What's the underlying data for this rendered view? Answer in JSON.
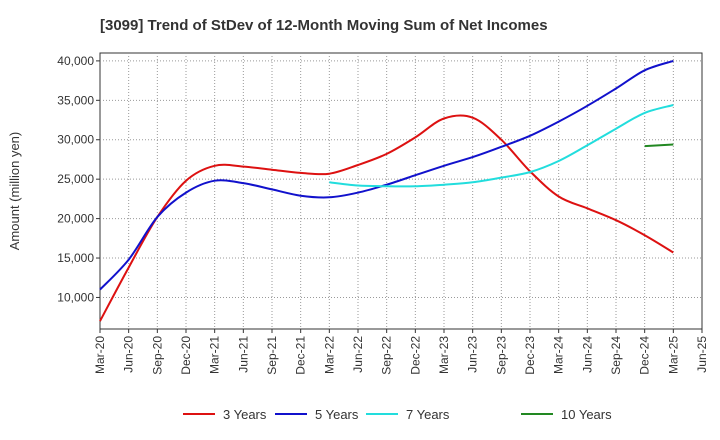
{
  "chart_data": {
    "type": "line",
    "title": "[3099]  Trend of StDev of 12-Month Moving Sum of Net Incomes",
    "xlabel": "",
    "ylabel": "Amount (million yen)",
    "ylim": [
      6000,
      41000
    ],
    "yticks": [
      10000,
      15000,
      20000,
      25000,
      30000,
      35000,
      40000
    ],
    "ytick_labels": [
      "10,000",
      "15,000",
      "20,000",
      "25,000",
      "30,000",
      "35,000",
      "40,000"
    ],
    "xtick_labels": [
      "Mar-20",
      "Jun-20",
      "Sep-20",
      "Dec-20",
      "Mar-21",
      "Jun-21",
      "Sep-21",
      "Dec-21",
      "Mar-22",
      "Jun-22",
      "Sep-22",
      "Dec-22",
      "Mar-23",
      "Jun-23",
      "Sep-23",
      "Dec-23",
      "Mar-24",
      "Jun-24",
      "Sep-24",
      "Dec-24",
      "Mar-25",
      "Jun-25"
    ],
    "grid": true,
    "legend_position": "bottom",
    "series": [
      {
        "name": "3 Years",
        "color": "#dd1111",
        "x": [
          "Mar-20",
          "Jun-20",
          "Sep-20",
          "Dec-20",
          "Mar-21",
          "Jun-21",
          "Sep-21",
          "Dec-21",
          "Mar-22",
          "Jun-22",
          "Sep-22",
          "Dec-22",
          "Mar-23",
          "Jun-23",
          "Sep-23",
          "Dec-23",
          "Mar-24",
          "Jun-24",
          "Sep-24",
          "Dec-24",
          "Mar-25"
        ],
        "values": [
          7000,
          13800,
          20200,
          24800,
          26700,
          26600,
          26200,
          25800,
          25700,
          26800,
          28200,
          30300,
          32700,
          32800,
          30000,
          26000,
          22800,
          21300,
          19800,
          17900,
          15700
        ]
      },
      {
        "name": "5 Years",
        "color": "#1111cc",
        "x": [
          "Mar-20",
          "Jun-20",
          "Sep-20",
          "Dec-20",
          "Mar-21",
          "Jun-21",
          "Sep-21",
          "Dec-21",
          "Mar-22",
          "Jun-22",
          "Sep-22",
          "Dec-22",
          "Mar-23",
          "Jun-23",
          "Sep-23",
          "Dec-23",
          "Mar-24",
          "Jun-24",
          "Sep-24",
          "Dec-24",
          "Mar-25"
        ],
        "values": [
          11000,
          14800,
          20200,
          23300,
          24800,
          24500,
          23700,
          22900,
          22700,
          23300,
          24300,
          25500,
          26700,
          27800,
          29100,
          30500,
          32300,
          34300,
          36500,
          38800,
          40000
        ]
      },
      {
        "name": "7 Years",
        "color": "#22dddd",
        "x": [
          "Mar-22",
          "Jun-22",
          "Sep-22",
          "Dec-22",
          "Mar-23",
          "Jun-23",
          "Sep-23",
          "Dec-23",
          "Mar-24",
          "Jun-24",
          "Sep-24",
          "Dec-24",
          "Mar-25"
        ],
        "values": [
          24600,
          24200,
          24100,
          24100,
          24300,
          24600,
          25200,
          25900,
          27300,
          29300,
          31400,
          33400,
          34400
        ]
      },
      {
        "name": "10 Years",
        "color": "#228822",
        "x": [
          "Dec-24",
          "Mar-25"
        ],
        "values": [
          29200,
          29400
        ]
      }
    ]
  }
}
